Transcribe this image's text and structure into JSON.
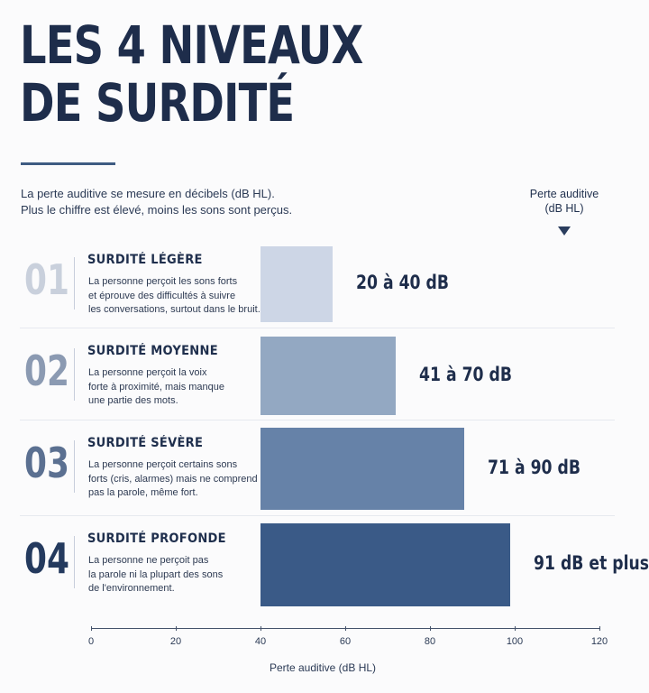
{
  "title_lines": [
    "LES 4 NIVEAUX",
    "DE SURDITÉ"
  ],
  "intro_lines": [
    "La perte auditive se mesure en décibels (dB HL).",
    "Plus le chiffre est élevé, moins les sons sont perçus."
  ],
  "legend_hint": [
    "Perte auditive",
    "(dB HL)"
  ],
  "levels": [
    {
      "number": "01",
      "title": "SURDITÉ LÉGÈRE",
      "description": [
        "La personne perçoit les sons forts",
        "et éprouve des difficultés à suivre",
        "les conversations, surtout dans le bruit."
      ],
      "range_label": "20 à 40 dB",
      "color": "#cdd6e6",
      "number_color": "#c9d0dc"
    },
    {
      "number": "02",
      "title": "SURDITÉ MOYENNE",
      "description": [
        "La personne perçoit la voix",
        "forte à proximité, mais manque",
        "une partie des mots."
      ],
      "range_label": "41 à 70 dB",
      "color": "#93a8c2",
      "number_color": "#8b9ab2"
    },
    {
      "number": "03",
      "title": "SURDITÉ SÉVÈRE",
      "description": [
        "La personne perçoit certains sons",
        "forts (cris, alarmes) mais ne comprend",
        "pas la parole, même fort."
      ],
      "range_label": "71 à 90 dB",
      "color": "#6682a8",
      "number_color": "#5b7091"
    },
    {
      "number": "04",
      "title": "SURDITÉ PROFONDE",
      "description": [
        "La personne ne perçoit pas",
        "la parole ni la plupart des sons",
        "de l'environnement."
      ],
      "range_label": "91 dB et plus",
      "color": "#3a5a87",
      "number_color": "#243a5e"
    }
  ],
  "chart_data": {
    "type": "bar",
    "orientation": "horizontal",
    "categories": [
      "SURDITÉ LÉGÈRE",
      "SURDITÉ MOYENNE",
      "SURDITÉ SÉVÈRE",
      "SURDITÉ PROFONDE"
    ],
    "series": [
      {
        "start": [
          40,
          40,
          40,
          40
        ],
        "values": [
          57,
          72,
          88,
          99
        ]
      }
    ],
    "data_labels": [
      "20 à 40 dB",
      "41 à 70 dB",
      "71 à 90 dB",
      "91 dB et plus"
    ],
    "xlabel": "Perte auditive (dB HL)",
    "xlim": [
      0,
      120
    ],
    "xticks": [
      0,
      20,
      40,
      60,
      80,
      100,
      120
    ],
    "grid": false
  }
}
